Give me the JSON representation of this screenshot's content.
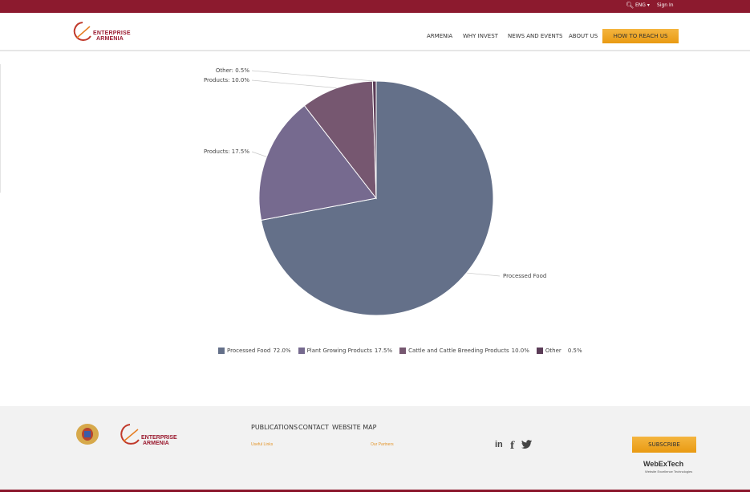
{
  "topbar": {
    "language": "ENG",
    "signin": "Sign In"
  },
  "header": {
    "logo_line1": "ENTERPRISE",
    "logo_line2": "ARMENIA",
    "nav": [
      "ARMENIA",
      "WHY INVEST",
      "NEWS AND EVENTS",
      "ABOUT US"
    ],
    "cta": "HOW TO REACH US"
  },
  "colors": {
    "brand": "#8c1a2e",
    "accent": "#f0a82a",
    "slices": [
      "#647089",
      "#766a8f",
      "#765770",
      "#5b3c57"
    ]
  },
  "chart_data": {
    "type": "pie",
    "categories": [
      "Processed Food",
      "Plant Growing Products",
      "Cattle and Cattle Breeding Products",
      "Other"
    ],
    "values": [
      72.0,
      17.5,
      10.0,
      0.5
    ],
    "callout_labels": [
      "Processed Food",
      "Products: 17.5%",
      "Products: 10.0%",
      "Other: 0.5%"
    ],
    "legend_values": [
      "72.0%",
      "17.5%",
      "10.0%",
      "0.5%"
    ]
  },
  "footer": {
    "links": [
      "PUBLICATIONS",
      "CONTACT",
      "WEBSITE MAP"
    ],
    "useful_links": "Useful Links",
    "our_partners": "Our Partners",
    "subscribe": "SUBSCRIBE",
    "webex_brand": "WebExTech",
    "webex_tagline": "Website Excellence Technologies",
    "logo_line1": "ENTERPRISE",
    "logo_line2": "ARMENIA",
    "social": {
      "linkedin": "in",
      "facebook": "f",
      "twitter": "t"
    }
  }
}
